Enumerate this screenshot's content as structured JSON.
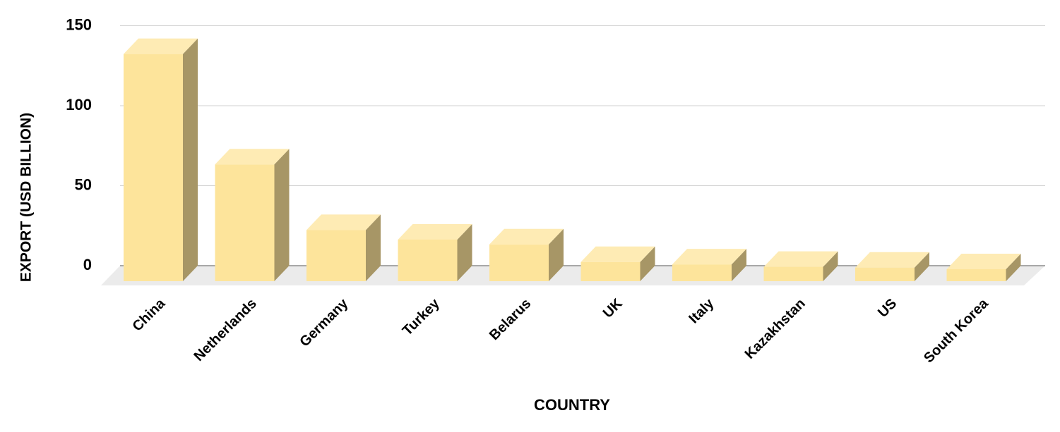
{
  "chart_data": {
    "type": "bar3d",
    "x_label": "COUNTRY",
    "y_label": "EXPORT (USD BILLION)",
    "categories": [
      "China",
      "Netherlands",
      "Germany",
      "Turkey",
      "Belarus",
      "UK",
      "Italy",
      "Kazakhstan",
      "US",
      "South Korea"
    ],
    "values": [
      142,
      73,
      32,
      26,
      23,
      12,
      10.5,
      9,
      8.5,
      7.5
    ],
    "color": "#fde49b",
    "ylim": [
      0,
      150
    ],
    "yticks": [
      0,
      50,
      100,
      150
    ],
    "grid": true
  }
}
